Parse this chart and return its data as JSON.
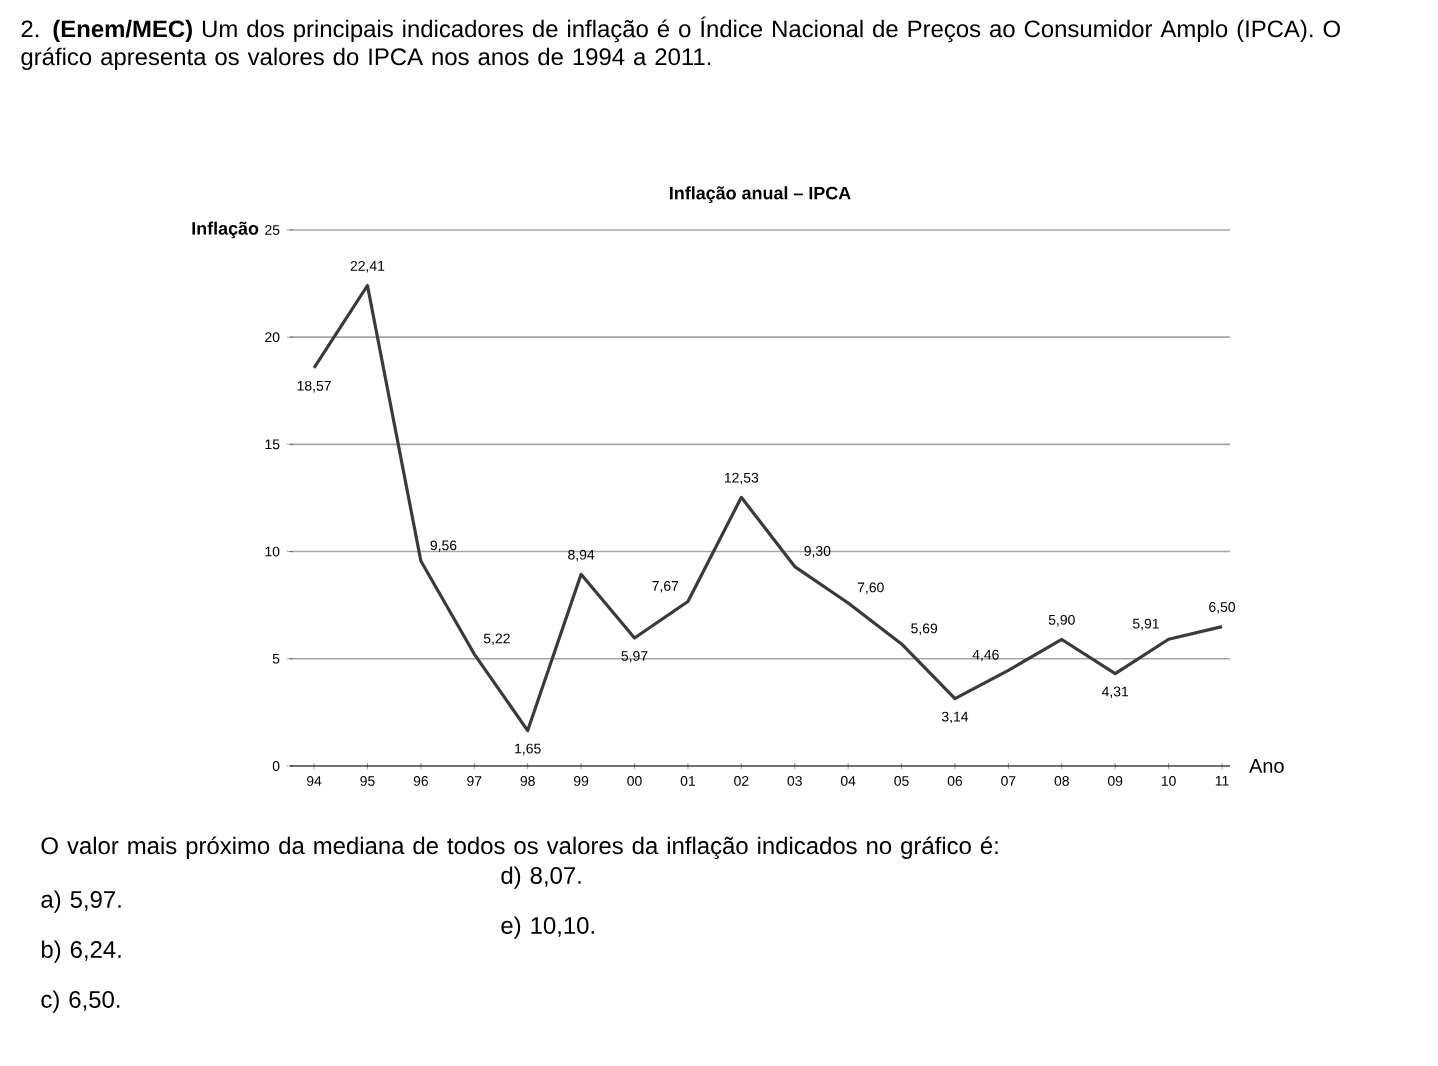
{
  "chart_data": {
    "type": "line",
    "title": "Inflação anual – IPCA",
    "xlabel": "Ano",
    "ylabel": "Inflação",
    "categories": [
      "94",
      "95",
      "96",
      "97",
      "98",
      "99",
      "00",
      "01",
      "02",
      "03",
      "04",
      "05",
      "06",
      "07",
      "08",
      "09",
      "10",
      "11"
    ],
    "values": [
      18.57,
      22.41,
      9.56,
      5.22,
      1.65,
      8.94,
      5.97,
      7.67,
      12.53,
      9.3,
      7.6,
      5.69,
      3.14,
      4.46,
      5.9,
      4.31,
      5.91,
      6.5
    ],
    "value_labels": [
      "18,57",
      "22,41",
      "9,56",
      "5,22",
      "1,65",
      "8,94",
      "5,97",
      "7,67",
      "12,53",
      "9,30",
      "7,60",
      "5,69",
      "3,14",
      "4,46",
      "5,90",
      "4,31",
      "5,91",
      "6,50"
    ],
    "color": "#3a3a3a",
    "ylim": [
      0,
      25
    ],
    "yticks": [
      0,
      5,
      10,
      15,
      20,
      25
    ],
    "grid": "y",
    "marker": "none",
    "line_style": "solid",
    "annotations": [
      "2. **(Enem/MEC)** Um dos principais indicadores de inflação é o Índice Nacional de Preços ao Consumidor Amplo (IPCA). O gráfico apresenta os valores do IPCA nos anos de 1994 a 2011.",
      "O valor mais próximo da mediana de todos os valores da inflação indicados no gráfico é:",
      "a) 5,97.",
      "b) 6,24.",
      "c) 6,50.",
      "d) 8,07.",
      "e) 10,10."
    ]
  }
}
